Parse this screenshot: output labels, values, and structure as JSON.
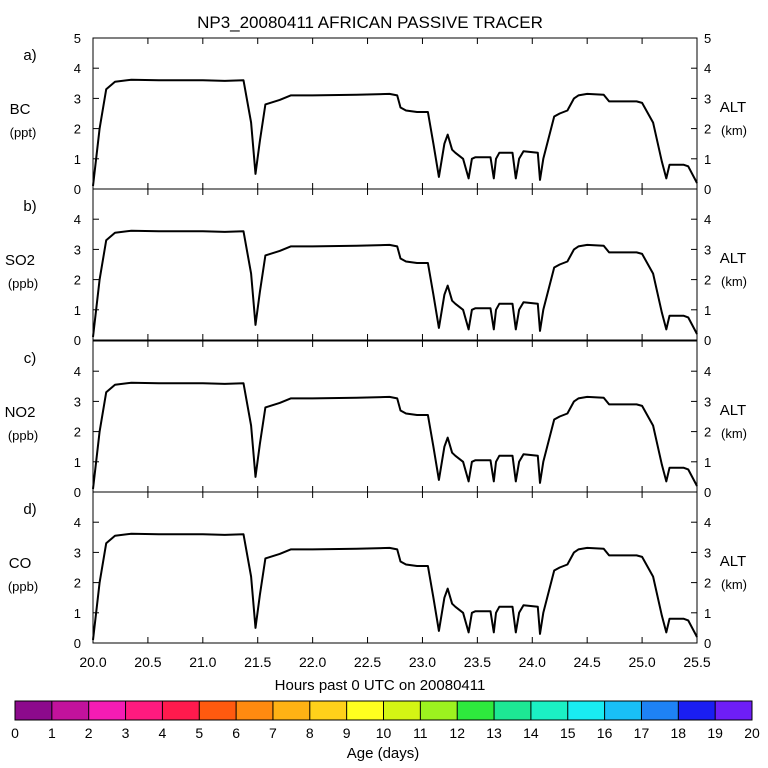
{
  "chart_data": {
    "type": "line",
    "title": "NP3_20080411 AFRICAN PASSIVE TRACER",
    "xlabel": "Hours past 0 UTC on 20080411",
    "x_ticks": [
      "20.0",
      "20.5",
      "21.0",
      "21.5",
      "22.0",
      "22.5",
      "23.0",
      "23.5",
      "24.0",
      "24.5",
      "25.0",
      "25.5"
    ],
    "xlim": [
      20.0,
      25.5
    ],
    "series_name": "Altitude (km)",
    "altitude_profile": {
      "x": [
        20.0,
        20.06,
        20.12,
        20.2,
        20.35,
        20.6,
        21.0,
        21.2,
        21.37,
        21.44,
        21.48,
        21.52,
        21.57,
        21.7,
        21.8,
        22.0,
        22.4,
        22.7,
        22.77,
        22.8,
        22.85,
        22.95,
        23.05,
        23.1,
        23.15,
        23.2,
        23.23,
        23.27,
        23.3,
        23.37,
        23.42,
        23.45,
        23.48,
        23.62,
        23.65,
        23.67,
        23.7,
        23.82,
        23.85,
        23.88,
        23.92,
        24.05,
        24.07,
        24.1,
        24.2,
        24.25,
        24.32,
        24.38,
        24.42,
        24.5,
        24.65,
        24.7,
        24.95,
        25.0,
        25.1,
        25.18,
        25.22,
        25.25,
        25.3,
        25.38,
        25.42,
        25.5
      ],
      "y": [
        0.1,
        2.0,
        3.3,
        3.55,
        3.62,
        3.6,
        3.6,
        3.58,
        3.6,
        2.2,
        0.5,
        1.6,
        2.8,
        2.95,
        3.1,
        3.1,
        3.12,
        3.15,
        3.1,
        2.7,
        2.6,
        2.55,
        2.55,
        1.5,
        0.4,
        1.5,
        1.8,
        1.3,
        1.2,
        1.0,
        0.35,
        1.0,
        1.05,
        1.05,
        0.35,
        1.0,
        1.2,
        1.2,
        0.35,
        1.0,
        1.25,
        1.2,
        0.3,
        1.0,
        2.4,
        2.5,
        2.6,
        3.0,
        3.1,
        3.15,
        3.12,
        2.9,
        2.9,
        2.85,
        2.2,
        0.9,
        0.35,
        0.8,
        0.8,
        0.8,
        0.75,
        0.2
      ]
    },
    "panels": [
      {
        "letter": "a)",
        "species": "BC",
        "unit": "(ppt)",
        "y_ticks": [
          "0",
          "1",
          "2",
          "3",
          "4",
          "5"
        ],
        "y2_label": "ALT",
        "y2_unit": "(km)",
        "ylim": [
          0,
          5
        ]
      },
      {
        "letter": "b)",
        "species": "SO2",
        "unit": "(ppb)",
        "y_ticks": [
          "0",
          "1",
          "2",
          "3",
          "4"
        ],
        "y2_label": "ALT",
        "y2_unit": "(km)",
        "ylim": [
          0,
          5
        ]
      },
      {
        "letter": "c)",
        "species": "NO2",
        "unit": "(ppb)",
        "y_ticks": [
          "0",
          "1",
          "2",
          "3",
          "4"
        ],
        "y2_label": "ALT",
        "y2_unit": "(km)",
        "ylim": [
          0,
          5
        ]
      },
      {
        "letter": "d)",
        "species": "CO",
        "unit": "(ppb)",
        "y_ticks": [
          "0",
          "1",
          "2",
          "3",
          "4"
        ],
        "y2_label": "ALT",
        "y2_unit": "(km)",
        "ylim": [
          0,
          5
        ]
      }
    ],
    "colorbar": {
      "label": "Age (days)",
      "tick_labels": [
        "0",
        "1",
        "2",
        "3",
        "4",
        "5",
        "6",
        "7",
        "8",
        "9",
        "10",
        "11",
        "12",
        "13",
        "14",
        "15",
        "16",
        "17",
        "18",
        "19",
        "20"
      ],
      "colors": [
        "#8c0a8c",
        "#c2129c",
        "#f51cb4",
        "#ff1a7f",
        "#ff1a4d",
        "#ff5a0f",
        "#ff8a10",
        "#ffb214",
        "#ffd11a",
        "#ffff1f",
        "#d4f514",
        "#9cf21f",
        "#2eea3d",
        "#1de894",
        "#1bf0c4",
        "#19ecf2",
        "#19c0f7",
        "#1e82f5",
        "#1a1ef2",
        "#6e1ef7"
      ]
    }
  }
}
